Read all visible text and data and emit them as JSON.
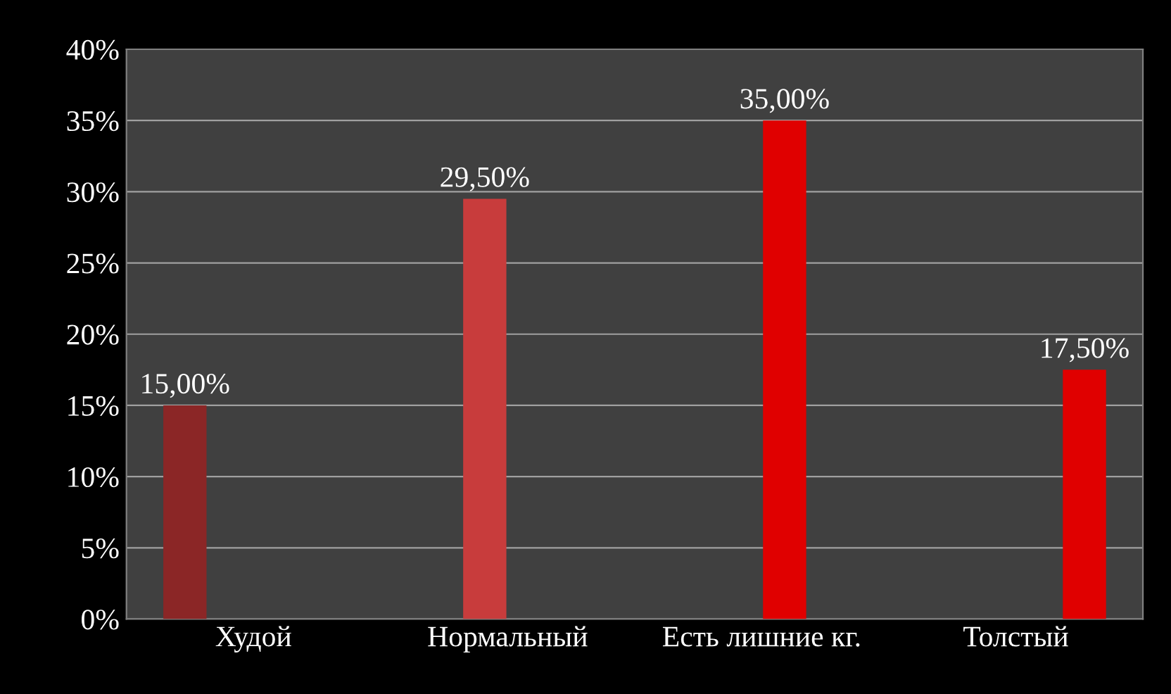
{
  "chart_data": {
    "type": "bar",
    "categories": [
      "Худой",
      "Нормальный",
      "Есть лишние кг.",
      "Толстый"
    ],
    "series": [
      {
        "color": "#8b2626",
        "values": [
          15,
          null,
          null,
          null
        ],
        "value_labels": [
          "15,00%",
          null,
          null,
          null
        ]
      },
      {
        "color": "#c83c3c",
        "values": [
          null,
          29.5,
          null,
          null
        ],
        "value_labels": [
          null,
          "29,50%",
          null,
          null
        ]
      },
      {
        "color": "#e00000",
        "values": [
          null,
          null,
          35,
          null
        ],
        "value_labels": [
          null,
          null,
          "35,00%",
          null
        ]
      },
      {
        "color": "#e00000",
        "values": [
          null,
          null,
          null,
          17.5
        ],
        "value_labels": [
          null,
          null,
          null,
          "17,50%"
        ]
      }
    ],
    "ylim": [
      0,
      40
    ],
    "yticks": [
      {
        "value": 0,
        "label": "0%"
      },
      {
        "value": 5,
        "label": "5%"
      },
      {
        "value": 10,
        "label": "10%"
      },
      {
        "value": 15,
        "label": "15%"
      },
      {
        "value": 20,
        "label": "20%"
      },
      {
        "value": 25,
        "label": "25%"
      },
      {
        "value": 30,
        "label": "30%"
      },
      {
        "value": 35,
        "label": "35%"
      },
      {
        "value": 40,
        "label": "40%"
      }
    ],
    "grid": "y",
    "legend": false
  }
}
